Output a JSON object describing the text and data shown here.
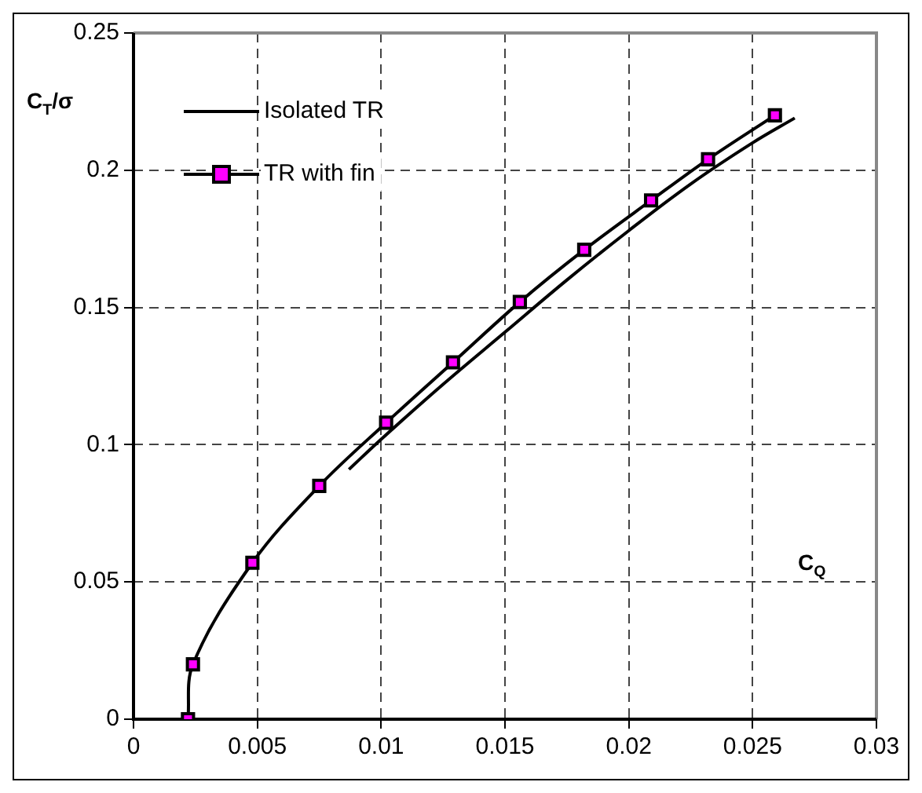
{
  "chart_data": {
    "type": "line",
    "xlabel": "C$_{Q}$",
    "ylabel": "C$_{T}$/σ",
    "xlim": [
      0,
      0.03
    ],
    "xticks": [
      0,
      0.005,
      0.01,
      0.015,
      0.02,
      0.025,
      0.03
    ],
    "ylim": [
      0,
      0.25
    ],
    "yticks": [
      0,
      0.05,
      0.1,
      0.15,
      0.2,
      0.25
    ],
    "grid": true,
    "legend": "top left",
    "series": [
      {
        "name": "Isolated TR",
        "color": "#000000",
        "marker": "none",
        "x": [
          0.0087,
          0.01,
          0.0125,
          0.015,
          0.0175,
          0.02,
          0.0225,
          0.025,
          0.0267
        ],
        "values": [
          0.091,
          0.102,
          0.122,
          0.141,
          0.16,
          0.178,
          0.195,
          0.21,
          0.219
        ]
      },
      {
        "name": "TR with fin",
        "color": "#ff00ff",
        "marker": "square",
        "x": [
          0.0022,
          0.0024,
          0.0048,
          0.0075,
          0.0102,
          0.0129,
          0.0156,
          0.0182,
          0.0209,
          0.0232,
          0.0259
        ],
        "values": [
          0,
          0.02,
          0.057,
          0.085,
          0.108,
          0.13,
          0.152,
          0.171,
          0.189,
          0.204,
          0.22
        ]
      }
    ]
  }
}
